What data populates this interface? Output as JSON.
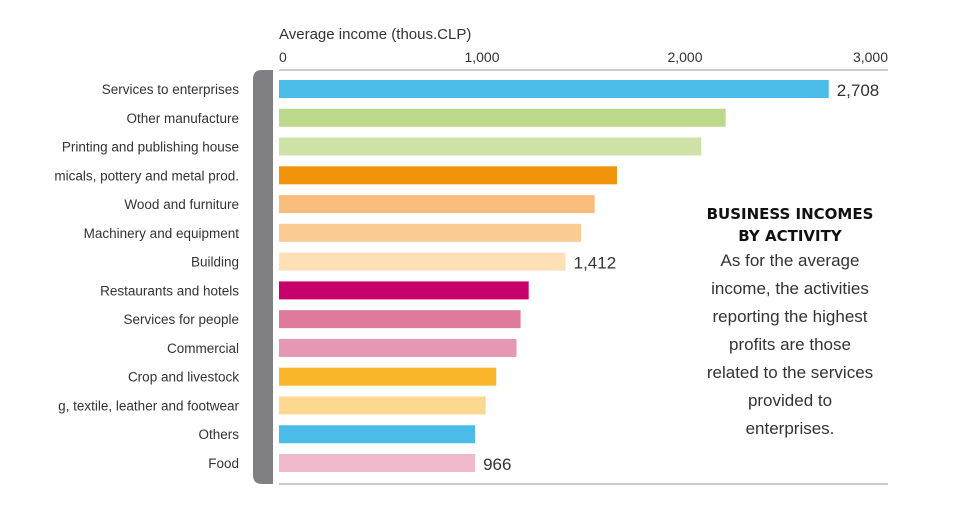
{
  "chart_data": {
    "type": "bar",
    "orientation": "horizontal",
    "xlabel": "Average income (thous.CLP)",
    "xlim": [
      0,
      3000
    ],
    "xticks": [
      0,
      1000,
      2000,
      3000
    ],
    "xtick_labels": [
      "0",
      "1,000",
      "2,000",
      "3,000"
    ],
    "grid": false,
    "categories": [
      "Services to enterprises",
      "Other manufacture",
      "Printing and publishing house",
      "micals, pottery and metal prod.",
      "Wood and furniture",
      "Machinery and equipment",
      "Building",
      "Restaurants and hotels",
      "Services for people",
      "Commercial",
      "Crop and livestock",
      "g, textile, leather and footwear",
      "Others",
      "Food"
    ],
    "values": [
      2708,
      2200,
      2080,
      1665,
      1555,
      1488,
      1412,
      1230,
      1190,
      1170,
      1070,
      1018,
      966,
      966
    ],
    "data_labels": [
      {
        "index": 0,
        "text": "2,708"
      },
      {
        "index": 6,
        "text": "1,412"
      },
      {
        "index": 13,
        "text": "966"
      }
    ],
    "colors": [
      "#4bbbe8",
      "#bcd88a",
      "#cfe3a8",
      "#f0920a",
      "#f8bd7c",
      "#fbcb94",
      "#fde0b6",
      "#c8006c",
      "#df7a9d",
      "#e597b4",
      "#fbb52a",
      "#fdd890",
      "#4bbbe8",
      "#f0b8cb"
    ],
    "axis_bracket_color": "#808084"
  },
  "side_panel": {
    "title": "BUSINESS INCOMES\nBY ACTIVITY",
    "body": "As for the average\nincome, the activities\nreporting the highest\nprofits are those\nrelated to the services\nprovided to\nenterprises."
  }
}
